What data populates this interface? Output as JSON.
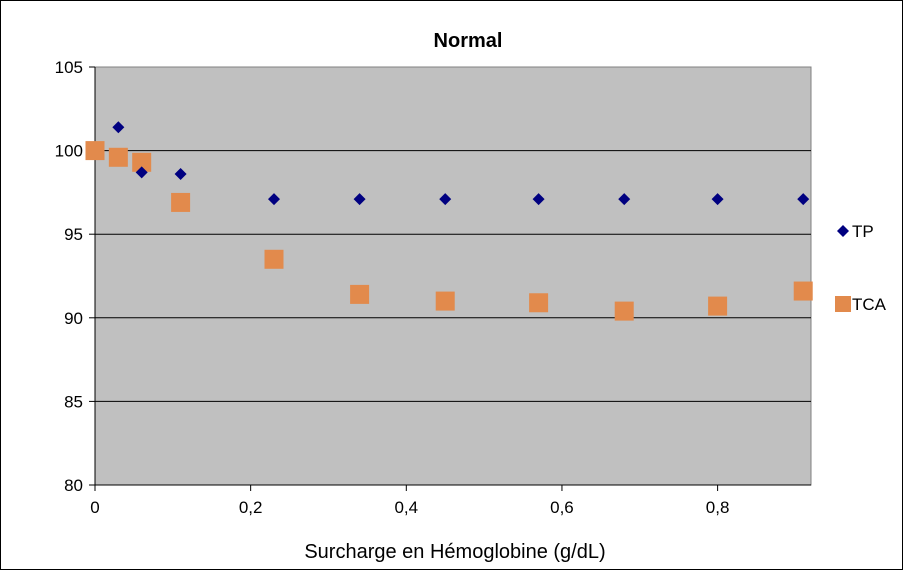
{
  "chart_data": {
    "type": "scatter",
    "title": "Normal",
    "xlabel": "Surcharge en Hémoglobine (g/dL)",
    "ylabel": "",
    "xlim": [
      0,
      0.92
    ],
    "ylim": [
      80,
      105
    ],
    "x_ticks": [
      "0",
      "0,2",
      "0,4",
      "0,6",
      "0,8"
    ],
    "y_ticks": [
      "80",
      "85",
      "90",
      "95",
      "100",
      "105"
    ],
    "grid": "horizontal",
    "legend_position": "right",
    "plot_background": "#c0c0c0",
    "series": [
      {
        "name": "TP",
        "marker": "diamond",
        "color": "#000080",
        "x": [
          0.03,
          0.06,
          0.11,
          0.23,
          0.34,
          0.45,
          0.57,
          0.68,
          0.8,
          0.91
        ],
        "y": [
          101.4,
          98.7,
          98.6,
          97.1,
          97.1,
          97.1,
          97.1,
          97.1,
          97.1,
          97.1
        ]
      },
      {
        "name": "TCA",
        "marker": "square",
        "color": "#e28a4c",
        "x": [
          0.0,
          0.03,
          0.06,
          0.11,
          0.23,
          0.34,
          0.45,
          0.57,
          0.68,
          0.8,
          0.91
        ],
        "y": [
          100.0,
          99.6,
          99.3,
          96.9,
          93.5,
          91.4,
          91.0,
          90.9,
          90.4,
          90.7,
          91.6
        ]
      }
    ]
  }
}
